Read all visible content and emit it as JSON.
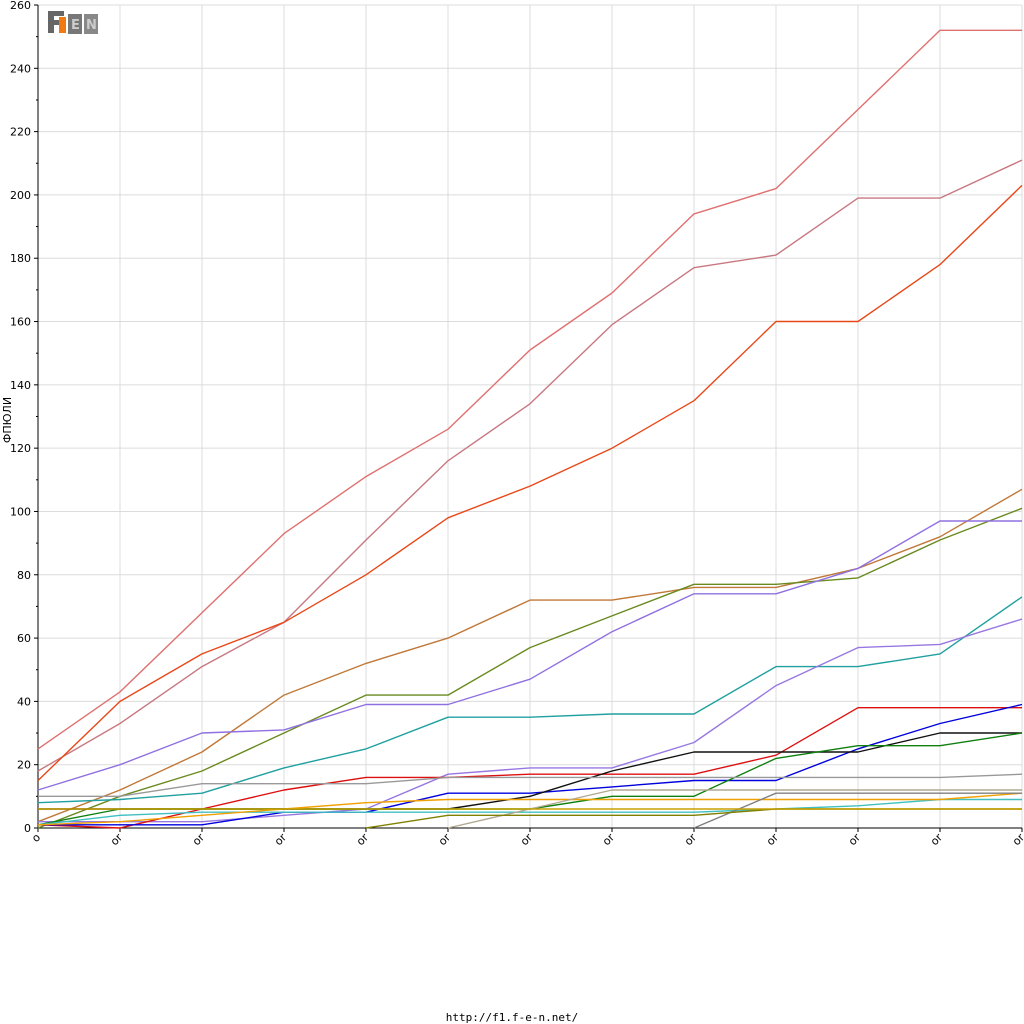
{
  "chart_data": {
    "type": "line",
    "title": "",
    "ylabel": "ФПЮЛИ",
    "xlabel": "",
    "ylim": [
      0,
      260
    ],
    "yticks": [
      0,
      20,
      40,
      60,
      80,
      100,
      120,
      140,
      160,
      180,
      200,
      220,
      240,
      260
    ],
    "x": [
      0,
      1,
      2,
      3,
      4,
      5,
      6,
      7,
      8,
      9,
      10,
      11,
      12
    ],
    "xtick_labels": [
      "o",
      "or",
      "or",
      "or",
      "or",
      "or",
      "or",
      "or",
      "or",
      "or",
      "or",
      "or",
      "or"
    ],
    "grid": true,
    "series": [
      {
        "color": "#e07070",
        "values": [
          25,
          43,
          68,
          93,
          111,
          126,
          151,
          169,
          194,
          202,
          227,
          252,
          252
        ]
      },
      {
        "color": "#c87880",
        "values": [
          18,
          33,
          51,
          65,
          91,
          116,
          134,
          159,
          177,
          181,
          199,
          199,
          211
        ]
      },
      {
        "color": "#e84818",
        "values": [
          15,
          40,
          55,
          65,
          80,
          98,
          108,
          120,
          135,
          160,
          160,
          178,
          203
        ]
      },
      {
        "color": "#c07838",
        "values": [
          2,
          12,
          24,
          42,
          52,
          60,
          72,
          72,
          76,
          76,
          82,
          92,
          107
        ]
      },
      {
        "color": "#6a8a20",
        "values": [
          0,
          10,
          18,
          30,
          42,
          42,
          57,
          67,
          77,
          77,
          79,
          91,
          101
        ]
      },
      {
        "color": "#9070e0",
        "values": [
          12,
          20,
          30,
          31,
          39,
          39,
          47,
          62,
          74,
          74,
          82,
          97,
          97
        ]
      },
      {
        "color": "#20a0a0",
        "values": [
          8,
          9,
          11,
          19,
          25,
          35,
          35,
          36,
          36,
          51,
          51,
          55,
          73
        ]
      },
      {
        "color": "#9878e0",
        "values": [
          2,
          2,
          2,
          4,
          6,
          17,
          19,
          19,
          27,
          45,
          57,
          58,
          66
        ]
      },
      {
        "color": "#dd1010",
        "values": [
          1,
          0,
          6,
          12,
          16,
          16,
          17,
          17,
          17,
          23,
          38,
          38,
          38
        ]
      },
      {
        "color": "#0000dd",
        "values": [
          1,
          1,
          1,
          5,
          5,
          11,
          11,
          13,
          15,
          15,
          25,
          33,
          39
        ]
      },
      {
        "color": "#101010",
        "values": [
          6,
          6,
          6,
          6,
          6,
          6,
          10,
          18,
          24,
          24,
          24,
          30,
          30
        ]
      },
      {
        "color": "#108010",
        "values": [
          1,
          6,
          6,
          6,
          6,
          6,
          6,
          10,
          10,
          22,
          26,
          26,
          30
        ]
      },
      {
        "color": "#999999",
        "values": [
          10,
          10,
          14,
          14,
          14,
          16,
          16,
          16,
          16,
          16,
          16,
          16,
          17
        ]
      },
      {
        "color": "#40c0c0",
        "values": [
          1,
          4,
          5,
          5,
          5,
          5,
          5,
          5,
          5,
          6,
          7,
          9,
          9
        ]
      },
      {
        "color": "#f0a000",
        "values": [
          1,
          2,
          4,
          6,
          8,
          9,
          9,
          9,
          9,
          9,
          9,
          9,
          11
        ]
      },
      {
        "color": "#b0a890",
        "values": [
          null,
          null,
          null,
          null,
          null,
          0,
          6,
          12,
          12,
          12,
          12,
          12,
          12
        ]
      },
      {
        "color": "#808080",
        "values": [
          null,
          null,
          null,
          null,
          null,
          null,
          null,
          null,
          0,
          11,
          11,
          11,
          11
        ]
      },
      {
        "color": "#808000",
        "values": [
          null,
          null,
          null,
          null,
          0,
          4,
          4,
          4,
          4,
          6,
          6,
          6,
          6
        ]
      },
      {
        "color": "#c8a000",
        "values": [
          6,
          6,
          6,
          6,
          6,
          6,
          6,
          6,
          6,
          6,
          6,
          6,
          6
        ]
      }
    ]
  },
  "logo": {
    "text": "F1EN"
  },
  "footer": {
    "url": "http://f1.f-e-n.net/"
  }
}
